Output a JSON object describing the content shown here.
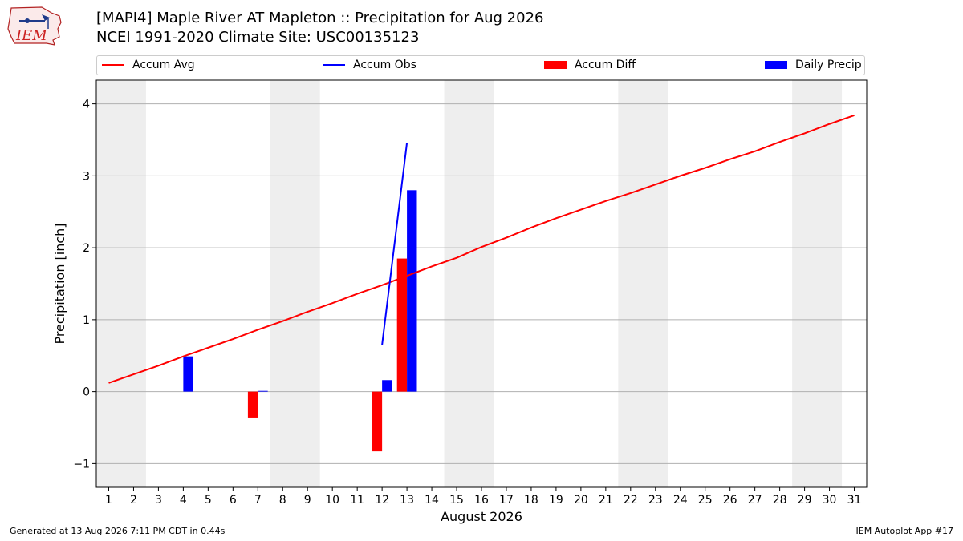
{
  "header": {
    "logo_text": "IEM",
    "title_line1": "[MAPI4] Maple River  AT Mapleton :: Precipitation for Aug 2026",
    "title_line2": "NCEI 1991-2020 Climate Site: USC00135123"
  },
  "legend": {
    "items": [
      {
        "label": "Accum Avg",
        "kind": "line",
        "color": "#ff0000"
      },
      {
        "label": "Accum Obs",
        "kind": "line",
        "color": "#0000ff"
      },
      {
        "label": "Accum Diff",
        "kind": "patch",
        "color": "#ff0000"
      },
      {
        "label": "Daily Precip",
        "kind": "patch",
        "color": "#0000ff"
      }
    ]
  },
  "footer": {
    "left": "Generated at 13 Aug 2026 7:11 PM CDT in 0.44s",
    "right": "IEM Autoplot App #17"
  },
  "chart_data": {
    "type": "bar",
    "xlabel": "August 2026",
    "ylabel": "Precipitation [inch]",
    "xlim": [
      0.5,
      31.5
    ],
    "ylim": [
      -1.33,
      4.33
    ],
    "yticks": [
      -1,
      0,
      1,
      2,
      3,
      4
    ],
    "ytick_labels": [
      "−1",
      "0",
      "1",
      "2",
      "3",
      "4"
    ],
    "xticks": [
      1,
      2,
      3,
      4,
      5,
      6,
      7,
      8,
      9,
      10,
      11,
      12,
      13,
      14,
      15,
      16,
      17,
      18,
      19,
      20,
      21,
      22,
      23,
      24,
      25,
      26,
      27,
      28,
      29,
      30,
      31
    ],
    "grid": "horizontal",
    "weekend_bands": [
      [
        0.5,
        2.5
      ],
      [
        7.5,
        9.5
      ],
      [
        14.5,
        16.5
      ],
      [
        21.5,
        23.5
      ],
      [
        28.5,
        30.5
      ]
    ],
    "weekend_color": "#eeeeee",
    "series": [
      {
        "name": "Accum Avg",
        "type": "line",
        "color": "#ff0000",
        "x": [
          1,
          2,
          3,
          4,
          5,
          6,
          7,
          8,
          9,
          10,
          11,
          12,
          13,
          14,
          15,
          16,
          17,
          18,
          19,
          20,
          21,
          22,
          23,
          24,
          25,
          26,
          27,
          28,
          29,
          30,
          31
        ],
        "y": [
          0.12,
          0.24,
          0.36,
          0.49,
          0.61,
          0.73,
          0.86,
          0.98,
          1.11,
          1.23,
          1.36,
          1.48,
          1.61,
          1.74,
          1.86,
          2.01,
          2.14,
          2.28,
          2.41,
          2.53,
          2.65,
          2.76,
          2.88,
          3.0,
          3.11,
          3.23,
          3.34,
          3.47,
          3.59,
          3.72,
          3.84
        ]
      },
      {
        "name": "Accum Obs",
        "type": "line",
        "color": "#0000ff",
        "x": [
          12,
          13
        ],
        "y": [
          0.65,
          3.46
        ]
      },
      {
        "name": "Accum Diff",
        "type": "bar",
        "color": "#ff0000",
        "x": [
          7,
          12,
          13
        ],
        "y": [
          -0.36,
          -0.83,
          1.85
        ]
      },
      {
        "name": "Daily Precip",
        "type": "bar",
        "color": "#0000ff",
        "x": [
          4,
          7,
          12,
          13
        ],
        "y": [
          0.49,
          0.01,
          0.16,
          2.8
        ]
      }
    ]
  }
}
